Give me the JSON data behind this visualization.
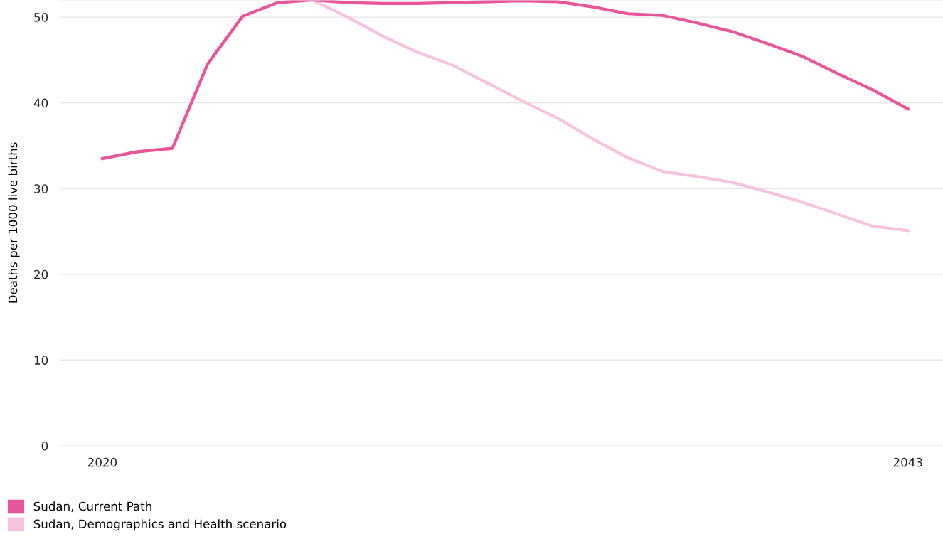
{
  "chart_data": {
    "type": "line",
    "ylabel": "Deaths per 1000 live births",
    "x": [
      2020,
      2021,
      2022,
      2023,
      2024,
      2025,
      2026,
      2027,
      2028,
      2029,
      2030,
      2031,
      2032,
      2033,
      2034,
      2035,
      2036,
      2037,
      2038,
      2039,
      2040,
      2041,
      2042,
      2043
    ],
    "series": [
      {
        "name": "Sudan, Demographics and Health scenario",
        "color": "#f7c3dc",
        "values": [
          33.5,
          34.3,
          34.7,
          44.5,
          50.1,
          51.7,
          52.0,
          50.0,
          47.8,
          45.9,
          44.4,
          42.3,
          40.2,
          38.2,
          35.8,
          33.6,
          32.0,
          31.4,
          30.7,
          29.6,
          28.4,
          27.0,
          25.6,
          25.1
        ]
      },
      {
        "name": "Sudan, Current Path",
        "color": "#e8559a",
        "values": [
          33.5,
          34.3,
          34.7,
          44.5,
          50.1,
          51.7,
          52.0,
          51.7,
          51.6,
          51.6,
          51.7,
          51.8,
          51.9,
          51.8,
          51.2,
          50.4,
          50.2,
          49.3,
          48.3,
          46.9,
          45.4,
          43.4,
          41.5,
          39.3
        ]
      }
    ],
    "xlim": [
      2018.8,
      2044
    ],
    "xticks": [
      2020,
      2043
    ],
    "ylim": [
      0,
      52
    ],
    "yticks": [
      0,
      10,
      20,
      30,
      40,
      50
    ],
    "grid": "y",
    "legend": "bottom left",
    "marker": "none",
    "line_style": "solid"
  }
}
